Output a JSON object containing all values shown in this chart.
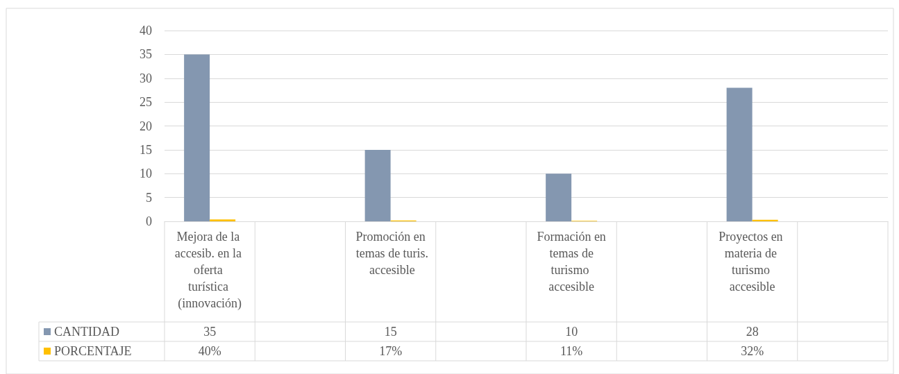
{
  "chart_data": {
    "type": "bar",
    "categories": [
      "Mejora de la accesib. en la oferta turística (innovación)",
      null,
      "Promoción en temas de turis. accesible",
      null,
      "Formación en temas de turismo accesible",
      null,
      "Proyectos en materia de turismo accesible",
      null
    ],
    "series": [
      {
        "name": "CANTIDAD",
        "color": "#8497b0",
        "values": [
          35,
          null,
          15,
          null,
          10,
          null,
          28,
          null
        ],
        "value_labels": [
          "35",
          null,
          "15",
          null,
          "10",
          null,
          "28",
          null
        ]
      },
      {
        "name": "PORCENTAJE",
        "color": "#ffc000",
        "values": [
          0.4,
          null,
          0.17,
          null,
          0.11,
          null,
          0.32,
          null
        ],
        "value_labels": [
          "40%",
          null,
          "17%",
          null,
          "11%",
          null,
          "32%",
          null
        ]
      }
    ],
    "ylim": [
      0,
      40
    ],
    "yticks": [
      0,
      5,
      10,
      15,
      20,
      25,
      30,
      35,
      40
    ],
    "grid": "y",
    "legend": "bottom left"
  }
}
